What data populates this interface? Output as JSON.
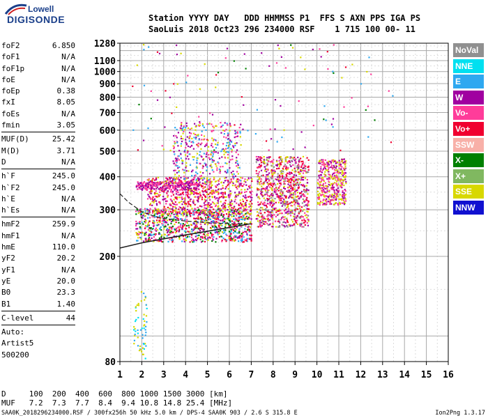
{
  "logo": {
    "top": "Lowell",
    "bottom": "DIGISONDE"
  },
  "header": {
    "line1": "Station YYYY DAY   DDD HHMMSS P1  FFS S AXN PPS IGA PS",
    "line2": "SaoLuis 2018 Oct23 296 234000 RSF    1 715 100 00- 11"
  },
  "params": [
    [
      {
        "name": "foF2",
        "value": "6.850"
      },
      {
        "name": "foF1",
        "value": "N/A"
      },
      {
        "name": "foF1p",
        "value": "N/A"
      },
      {
        "name": "foE",
        "value": "N/A"
      },
      {
        "name": "foEp",
        "value": "0.38"
      },
      {
        "name": "fxI",
        "value": "8.05"
      },
      {
        "name": "foEs",
        "value": "N/A"
      },
      {
        "name": "fmin",
        "value": "3.05"
      }
    ],
    [
      {
        "name": "MUF(D)",
        "value": "25.42"
      },
      {
        "name": "M(D)",
        "value": "3.71"
      },
      {
        "name": "D",
        "value": "N/A"
      }
    ],
    [
      {
        "name": "h`F",
        "value": "245.0"
      },
      {
        "name": "h`F2",
        "value": "245.0"
      },
      {
        "name": "h`E",
        "value": "N/A"
      },
      {
        "name": "h`Es",
        "value": "N/A"
      }
    ],
    [
      {
        "name": "hmF2",
        "value": "259.9"
      },
      {
        "name": "hmF1",
        "value": "N/A"
      },
      {
        "name": "hmE",
        "value": "110.0"
      },
      {
        "name": "yF2",
        "value": "20.2"
      },
      {
        "name": "yF1",
        "value": "N/A"
      },
      {
        "name": "yE",
        "value": "20.0"
      },
      {
        "name": "B0",
        "value": "23.3"
      },
      {
        "name": "B1",
        "value": "1.40"
      }
    ],
    [
      {
        "name": "C-level",
        "value": "44"
      }
    ],
    [
      {
        "name": "Auto:",
        "value": ""
      },
      {
        "name": "Artist5",
        "value": ""
      },
      {
        "name": "500200",
        "value": ""
      }
    ]
  ],
  "legend": [
    {
      "label": "NoVal",
      "color": "#909090"
    },
    {
      "label": "NNE",
      "color": "#00e0f0"
    },
    {
      "label": "E",
      "color": "#2ea8f0"
    },
    {
      "label": "W",
      "color": "#a000a0"
    },
    {
      "label": "Vo-",
      "color": "#ff3c9a"
    },
    {
      "label": "Vo+",
      "color": "#f00030"
    },
    {
      "label": "SSW",
      "color": "#f8b0a8"
    },
    {
      "label": "X-",
      "color": "#008000"
    },
    {
      "label": "X+",
      "color": "#80b860"
    },
    {
      "label": "SSE",
      "color": "#d8d800"
    },
    {
      "label": "NNW",
      "color": "#1010d0"
    }
  ],
  "footer": {
    "d_line": "D     100  200  400  600  800 1000 1500 3000 [km]",
    "muf_line": "MUF   7.2  7.3  7.7  8.4  9.4 10.8 14.8 25.4 [MHz]",
    "file_line": "SAA0K_2018296234000.RSF / 300fx256h 50 kHz 5.0 km / DPS-4 SAA0K 903 / 2.6 S 315.8 E",
    "version": "Ion2Png 1.3.17"
  },
  "chart_data": {
    "type": "scatter",
    "xlabel": "",
    "ylabel": "",
    "xlim": [
      1,
      16
    ],
    "ylim": [
      80,
      1280
    ],
    "x_ticks": [
      1,
      2,
      3,
      4,
      5,
      6,
      7,
      8,
      9,
      10,
      11,
      12,
      13,
      14,
      15,
      16
    ],
    "y_ticks": [
      80,
      200,
      300,
      400,
      500,
      600,
      700,
      800,
      900,
      1000,
      1100,
      1280
    ],
    "y_scale": "log",
    "grid": true,
    "traces": [
      {
        "name": "trace-lower",
        "points": [
          [
            1.0,
            215
          ],
          [
            2,
            225
          ],
          [
            3,
            233
          ],
          [
            4,
            241
          ],
          [
            5,
            249
          ],
          [
            6,
            257
          ],
          [
            7,
            266
          ]
        ]
      },
      {
        "name": "trace-upper",
        "points": [
          [
            1.0,
            345
          ],
          [
            1.4,
            320
          ],
          [
            2,
            295
          ],
          [
            2.5,
            285
          ],
          [
            3,
            278
          ],
          [
            4,
            272
          ],
          [
            5,
            268
          ],
          [
            6,
            266
          ],
          [
            7,
            265
          ]
        ]
      }
    ],
    "echo_regions": [
      {
        "name": "F-trace-low",
        "x": [
          1.7,
          7.0
        ],
        "y": [
          228,
          305
        ],
        "colors": [
          "#f00030",
          "#ff3c9a",
          "#a000a0",
          "#d8d800",
          "#2ea8f0",
          "#008000"
        ],
        "n": 900
      },
      {
        "name": "F-spread-mid",
        "x": [
          2.2,
          7.0
        ],
        "y": [
          290,
          400
        ],
        "colors": [
          "#f00030",
          "#ff3c9a",
          "#a000a0",
          "#d8d800"
        ],
        "n": 800
      },
      {
        "name": "W-layer-370",
        "x": [
          1.7,
          4.6
        ],
        "y": [
          358,
          385
        ],
        "colors": [
          "#a000a0",
          "#ff3c9a"
        ],
        "n": 250
      },
      {
        "name": "right-cluster",
        "x": [
          7.2,
          9.6
        ],
        "y": [
          260,
          480
        ],
        "colors": [
          "#f00030",
          "#a000a0",
          "#ff3c9a",
          "#d8d800",
          "#909090"
        ],
        "n": 900
      },
      {
        "name": "SSE-cluster",
        "x": [
          10.0,
          11.3
        ],
        "y": [
          315,
          470
        ],
        "colors": [
          "#d8d800",
          "#a000a0",
          "#ff3c9a"
        ],
        "n": 420
      },
      {
        "name": "high-columns",
        "x": [
          3.4,
          6.5
        ],
        "y": [
          380,
          650
        ],
        "colors": [
          "#a000a0",
          "#ff3c9a",
          "#d8d800",
          "#2ea8f0"
        ],
        "n": 420
      },
      {
        "name": "scattered-high",
        "x": [
          1.5,
          13.5
        ],
        "y": [
          500,
          1280
        ],
        "colors": [
          "#a000a0",
          "#ff3c9a",
          "#d8d800",
          "#2ea8f0",
          "#008000",
          "#f00030"
        ],
        "n": 120
      },
      {
        "name": "low-noise",
        "x": [
          1.6,
          2.2
        ],
        "y": [
          82,
          150
        ],
        "colors": [
          "#2ea8f0",
          "#00e0f0",
          "#d8d800"
        ],
        "n": 60
      }
    ]
  }
}
